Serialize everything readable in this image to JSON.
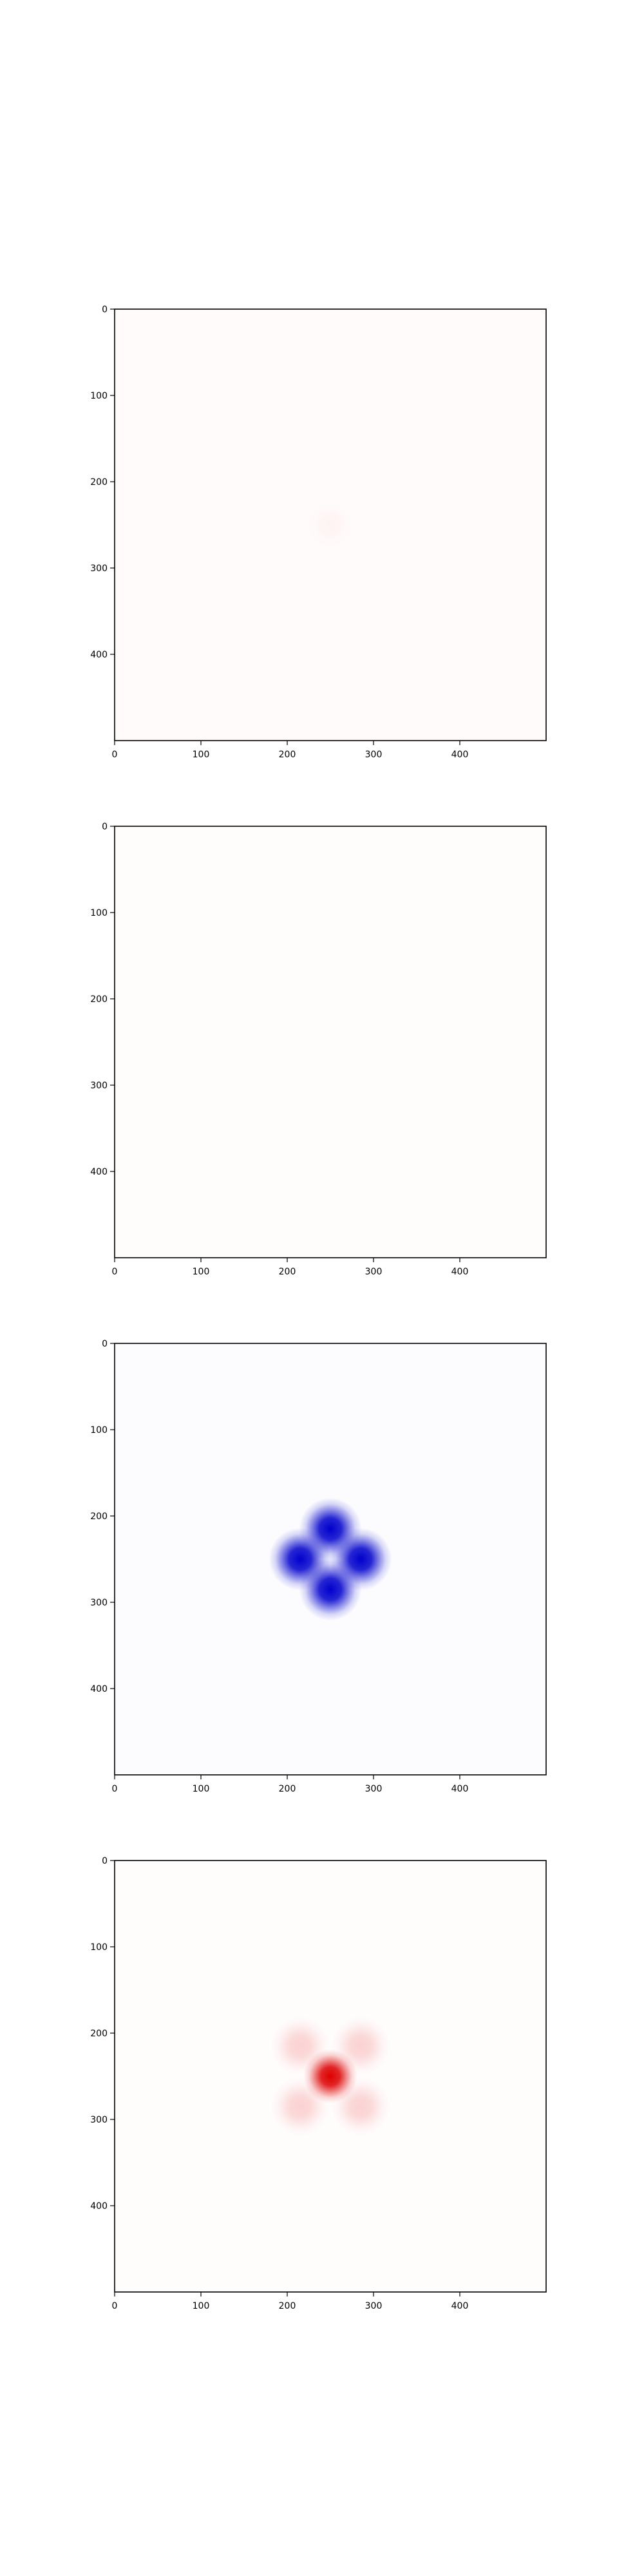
{
  "chart_data": [
    {
      "type": "heatmap",
      "title": "",
      "xlabel": "",
      "ylabel": "",
      "xlim": [
        0,
        500
      ],
      "ylim": [
        500,
        0
      ],
      "xticks": [
        0,
        100,
        200,
        300,
        400
      ],
      "yticks": [
        0,
        100,
        200,
        300,
        400
      ],
      "colormap": "seismic",
      "background_color": "#fffbfb",
      "features": [
        {
          "name": "faint-spot",
          "x": 250,
          "y": 250,
          "sigma": 10,
          "intensity": 0.06,
          "color": "#f08a70"
        }
      ]
    },
    {
      "type": "heatmap",
      "title": "",
      "xlabel": "",
      "ylabel": "",
      "xlim": [
        0,
        500
      ],
      "ylim": [
        500,
        0
      ],
      "xticks": [
        0,
        100,
        200,
        300,
        400
      ],
      "yticks": [
        0,
        100,
        200,
        300,
        400
      ],
      "colormap": "seismic",
      "background_color": "#fffcfc",
      "features": []
    },
    {
      "type": "heatmap",
      "title": "",
      "xlabel": "",
      "ylabel": "",
      "xlim": [
        0,
        500
      ],
      "ylim": [
        500,
        0
      ],
      "xticks": [
        0,
        100,
        200,
        300,
        400
      ],
      "yticks": [
        0,
        100,
        200,
        300,
        400
      ],
      "colormap": "seismic",
      "background_color": "#fcfcff",
      "features": [
        {
          "name": "lobe-top",
          "x": 250,
          "y": 215,
          "sigma": 14,
          "intensity": 1.0,
          "color": "#0000cc"
        },
        {
          "name": "lobe-bottom",
          "x": 250,
          "y": 285,
          "sigma": 14,
          "intensity": 1.0,
          "color": "#0000cc"
        },
        {
          "name": "lobe-left",
          "x": 215,
          "y": 250,
          "sigma": 14,
          "intensity": 1.0,
          "color": "#0000cc"
        },
        {
          "name": "lobe-right",
          "x": 285,
          "y": 250,
          "sigma": 14,
          "intensity": 1.0,
          "color": "#0000cc"
        }
      ]
    },
    {
      "type": "heatmap",
      "title": "",
      "xlabel": "",
      "ylabel": "",
      "xlim": [
        0,
        500
      ],
      "ylim": [
        500,
        0
      ],
      "xticks": [
        0,
        100,
        200,
        300,
        400
      ],
      "yticks": [
        0,
        100,
        200,
        300,
        400
      ],
      "colormap": "seismic",
      "background_color": "#fffcfc",
      "features": [
        {
          "name": "center-peak",
          "x": 250,
          "y": 250,
          "sigma": 12,
          "intensity": 1.0,
          "color": "#dd0000"
        },
        {
          "name": "corner-top-left",
          "x": 215,
          "y": 215,
          "sigma": 13,
          "intensity": 0.3,
          "color": "#f07070"
        },
        {
          "name": "corner-top-right",
          "x": 285,
          "y": 215,
          "sigma": 13,
          "intensity": 0.3,
          "color": "#f07070"
        },
        {
          "name": "corner-bottom-left",
          "x": 215,
          "y": 285,
          "sigma": 13,
          "intensity": 0.3,
          "color": "#f07070"
        },
        {
          "name": "corner-bottom-right",
          "x": 285,
          "y": 285,
          "sigma": 13,
          "intensity": 0.3,
          "color": "#f07070"
        }
      ]
    }
  ]
}
